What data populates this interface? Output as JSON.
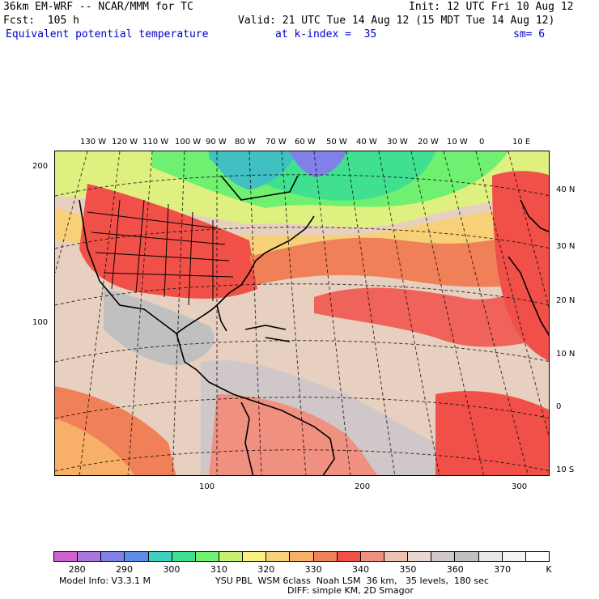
{
  "header": {
    "title_left": "36km EM-WRF -- NCAR/MMM for TC",
    "init": "Init: 12 UTC Fri 10 Aug 12",
    "forecast": "Fcst:  105 h",
    "valid": "Valid: 21 UTC Tue 14 Aug 12 (15 MDT Tue 14 Aug 12)",
    "field": "Equivalent potential temperature",
    "level": "at k-index =  35",
    "smoothing": "sm= 6"
  },
  "map": {
    "longitude_labels": [
      "130 W",
      "120 W",
      "110 W",
      "100 W",
      "90 W",
      "80 W",
      "70 W",
      "60 W",
      "50 W",
      "40 W",
      "30 W",
      "20 W",
      "10 W",
      "0",
      "10 E"
    ],
    "latitude_labels": [
      "40 N",
      "30 N",
      "20 N",
      "10 N",
      "0",
      "10 S"
    ],
    "y_grid_labels": [
      "200",
      "100"
    ],
    "x_grid_labels": [
      "100",
      "200",
      "300"
    ],
    "colors": {
      "purple": "#c060d0",
      "violet": "#a080e0",
      "blue_violet": "#8080e8",
      "blue": "#5a8ce8",
      "teal": "#40c0c0",
      "sea_green": "#40d890",
      "green": "#60e860",
      "lime": "#a8f070",
      "yellow_green": "#e0f080",
      "yellow": "#f8e880",
      "light_orange": "#f8d080",
      "orange": "#f8a070",
      "red_orange": "#f07060",
      "red": "#f05050",
      "salmon": "#f0b0a0",
      "tan": "#e8d0c0",
      "grey_tan": "#d8c8c0",
      "grey": "#c8c8c8",
      "light_grey": "#e0e0e0"
    }
  },
  "colorbar": {
    "colors": [
      "#d060d0",
      "#a878e0",
      "#8080e8",
      "#5a8ce8",
      "#40d0c0",
      "#40e090",
      "#70f070",
      "#c8f070",
      "#f8f080",
      "#f8d078",
      "#f8b068",
      "#f08058",
      "#f05048",
      "#f09080",
      "#f0c0b0",
      "#e8d8d0",
      "#d0c8c8",
      "#c0c0c0",
      "#e8e8e8",
      "#f4f4f4",
      "#ffffff"
    ],
    "labels": [
      "280",
      "290",
      "300",
      "310",
      "320",
      "330",
      "340",
      "350",
      "360",
      "370"
    ],
    "unit": "K"
  },
  "footer": {
    "model_info": "Model Info: V3.3.1 M",
    "physics": "YSU PBL  WSM 6class  Noah LSM  36 km,   35 levels,  180 sec",
    "diffusion": "DIFF: simple KM, 2D Smagor"
  }
}
